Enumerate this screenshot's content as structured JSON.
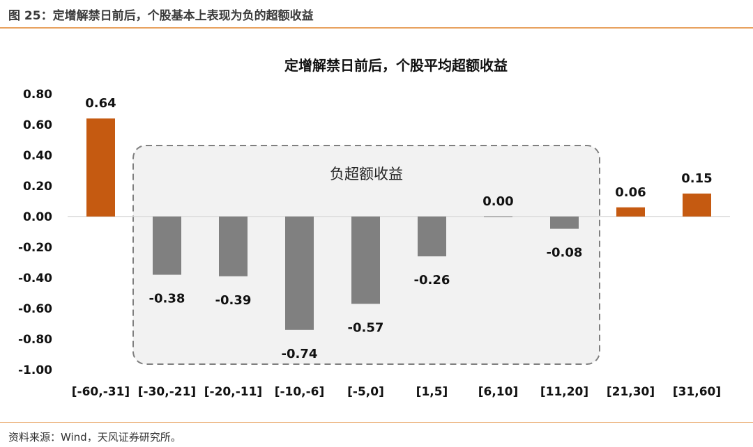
{
  "figure": {
    "title": "图 25：定增解禁日前后，个股基本上表现为负的超额收益",
    "source": "资料来源：Wind，天风证券研究所。"
  },
  "chart_data": {
    "type": "bar",
    "title": "定增解禁日前后，个股平均超额收益",
    "xlabel": "",
    "ylabel": "",
    "categories": [
      "[-60,-31]",
      "[-30,-21]",
      "[-20,-11]",
      "[-10,-6]",
      "[-5,0]",
      "[1,5]",
      "[6,10]",
      "[11,20]",
      "[21,30]",
      "[31,60]"
    ],
    "values": [
      0.64,
      -0.38,
      -0.39,
      -0.74,
      -0.57,
      -0.26,
      0.0,
      -0.08,
      0.06,
      0.15
    ],
    "value_labels": [
      "0.64",
      "-0.38",
      "-0.39",
      "-0.74",
      "-0.57",
      "-0.26",
      "0.00",
      "-0.08",
      "0.06",
      "0.15"
    ],
    "ylim": [
      -1.0,
      0.8
    ],
    "yticks": [
      0.8,
      0.6,
      0.4,
      0.2,
      0.0,
      -0.2,
      -0.4,
      -0.6,
      -0.8,
      -1.0
    ],
    "ytick_labels": [
      "0.80",
      "0.60",
      "0.40",
      "0.20",
      "0.00",
      "-0.20",
      "-0.40",
      "-0.60",
      "-0.80",
      "-1.00"
    ],
    "grid": false,
    "colors": {
      "positive": "#c55a11",
      "negative": "#808080",
      "zero_line": "#d9d9d9"
    },
    "annotation": {
      "text": "负超额收益",
      "spans_categories": [
        "[-30,-21]",
        "[11,20]"
      ],
      "style": "dashed rounded box",
      "border_color": "#7f7f7f",
      "fill_color": "#f2f2f2"
    }
  }
}
